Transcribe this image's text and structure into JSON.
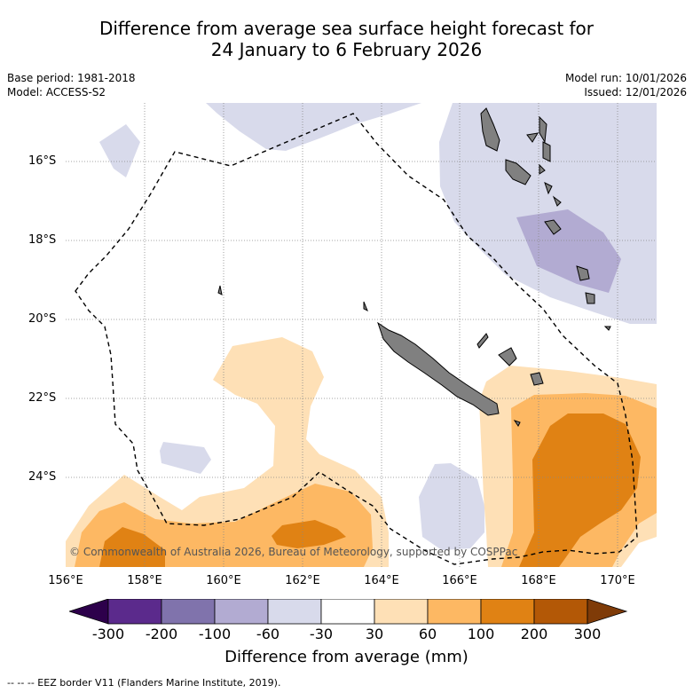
{
  "title": {
    "line1": "Difference from average sea surface height forecast for",
    "line2": "24 January to 6 February 2026"
  },
  "meta_left": {
    "base_period": "Base period: 1981-2018",
    "model": "Model: ACCESS-S2"
  },
  "meta_right": {
    "model_run": "Model run: 10/01/2026",
    "issued": "Issued: 12/01/2026"
  },
  "map": {
    "copyright": "© Commonwealth of Australia 2026, Bureau of Meteorology, supported by COSPPac",
    "lat_labels": [
      "16°S",
      "18°S",
      "20°S",
      "22°S",
      "24°S"
    ],
    "lon_labels": [
      "156°E",
      "158°E",
      "160°E",
      "162°E",
      "164°E",
      "166°E",
      "168°E",
      "170°E"
    ]
  },
  "colorbar": {
    "colors": [
      "#5b2a8c",
      "#8073ac",
      "#b2abd2",
      "#d8daeb",
      "#ffffff",
      "#fee0b6",
      "#fdb863",
      "#e08214",
      "#b35806"
    ],
    "low_extend_color": "#2d004b",
    "high_extend_color": "#7f3b08",
    "tick_labels": [
      "-300",
      "-200",
      "-100",
      "-60",
      "-30",
      "30",
      "60",
      "100",
      "200",
      "300"
    ],
    "title": "Difference from average (mm)"
  },
  "footer": "--  --  -- EEZ border V11 (Flanders Marine Institute, 2019)."
}
